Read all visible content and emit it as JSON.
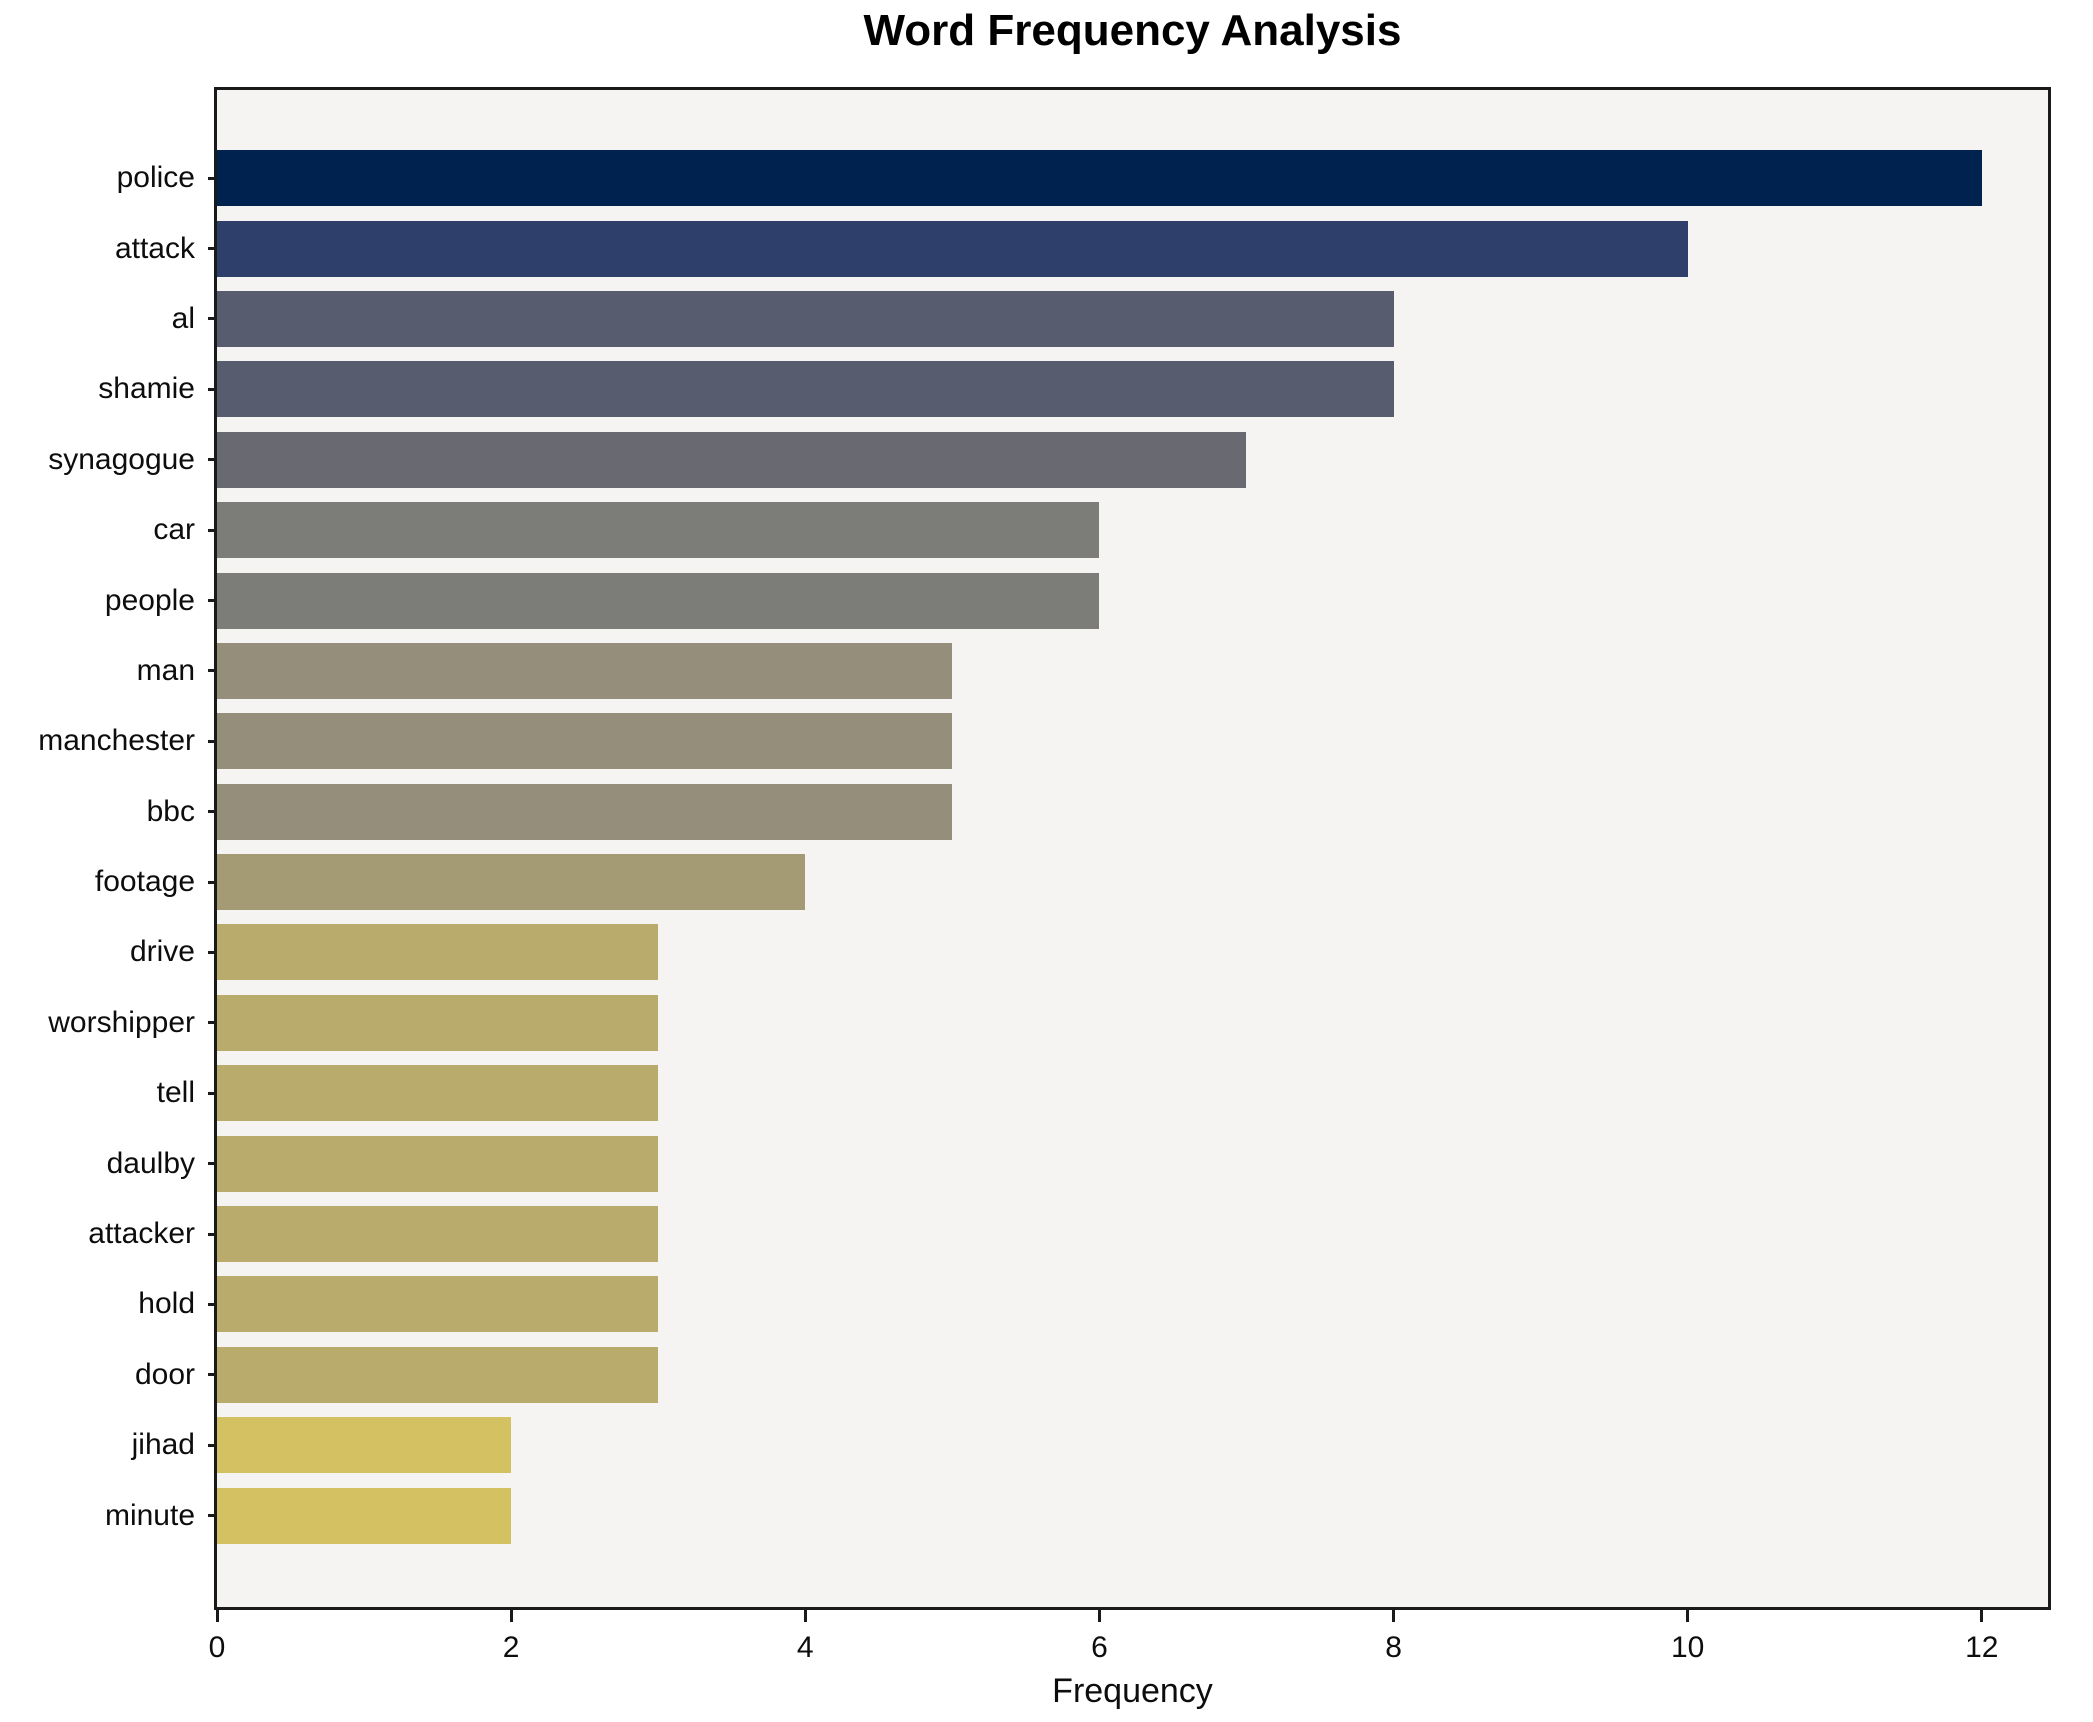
{
  "chart_data": {
    "type": "bar",
    "orientation": "horizontal",
    "title": "Word Frequency Analysis",
    "xlabel": "Frequency",
    "ylabel": "",
    "grid": false,
    "legend": null,
    "xlim": [
      0,
      12.45
    ],
    "xticks": [
      0,
      2,
      4,
      6,
      8,
      10,
      12
    ],
    "categories": [
      "police",
      "attack",
      "al",
      "shamie",
      "synagogue",
      "car",
      "people",
      "man",
      "manchester",
      "bbc",
      "footage",
      "drive",
      "worshipper",
      "tell",
      "daulby",
      "attacker",
      "hold",
      "door",
      "jihad",
      "minute"
    ],
    "values": [
      12,
      10,
      8,
      8,
      7,
      6,
      6,
      5,
      5,
      5,
      4,
      3,
      3,
      3,
      3,
      3,
      3,
      3,
      2,
      2
    ],
    "bar_colors": [
      "#00224e",
      "#2d3f6a",
      "#575d6e",
      "#575d6e",
      "#696a71",
      "#7c7c79",
      "#7c7c79",
      "#948e7a",
      "#948e7a",
      "#948e7a",
      "#a49b74",
      "#b9ab6c",
      "#b9ab6c",
      "#b9ab6c",
      "#b9ab6c",
      "#b9ab6c",
      "#b9ab6c",
      "#b9ab6c",
      "#d4c262",
      "#d4c262"
    ],
    "colormap": "cividis",
    "plot_background": "#f5f4f2",
    "figure_background": "#ffffff",
    "spine_color": "#1a1a1a",
    "text_color": "#0d0d0d"
  }
}
